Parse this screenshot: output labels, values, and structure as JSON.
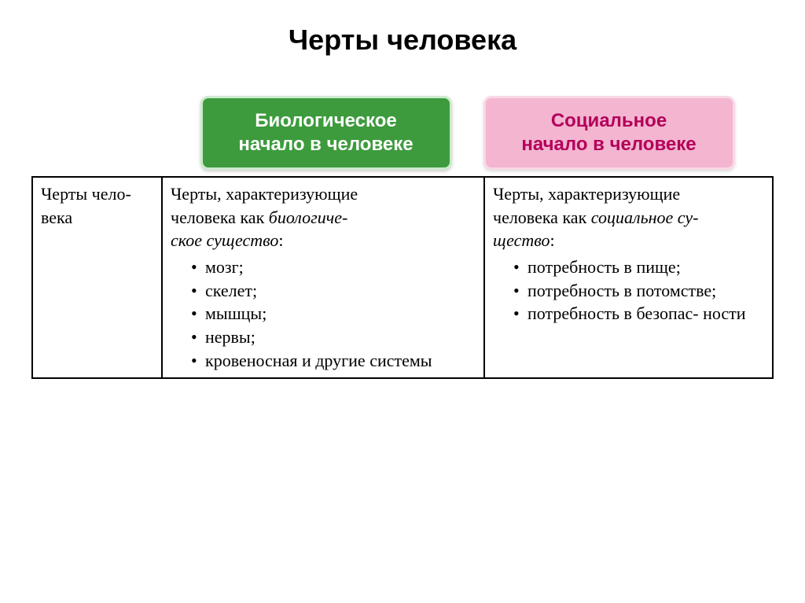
{
  "title": "Черты человека",
  "headers": {
    "bio": {
      "line1": "Биологическое",
      "line2": "начало в человеке"
    },
    "soc": {
      "line1": "Социальное",
      "line2": "начало в человеке"
    }
  },
  "rowLabel": {
    "line1": "Черты чело-",
    "line2": "века"
  },
  "bioCell": {
    "lead1": "Черты, характеризующие",
    "lead2_pre": "человека как ",
    "lead2_em1": "биологиче-",
    "lead3_em": "ское существо",
    "lead3_post": ":",
    "items": [
      "мозг;",
      "скелет;",
      "мышцы;",
      "нервы;",
      "кровеносная и другие системы"
    ]
  },
  "socCell": {
    "lead1": "Черты, характеризующие",
    "lead2_pre": "человека как ",
    "lead2_em": "социальное су-",
    "lead3_em": "щество",
    "lead3_post": ":",
    "items": [
      "потребность в пище;",
      "потребность в потомстве;",
      "потребность в безопас-\nности"
    ]
  },
  "colors": {
    "bio_bg": "#3d9b3d",
    "bio_text": "#ffffff",
    "bio_border": "#cceacc",
    "soc_bg": "#f3b5d0",
    "soc_text": "#b3005a",
    "soc_border": "#f9d8e6",
    "table_border": "#000000",
    "background": "#ffffff"
  },
  "fonts": {
    "title_size": 36,
    "header_box_size": 24,
    "table_size": 22,
    "title_family": "Arial",
    "table_family": "Times New Roman"
  }
}
